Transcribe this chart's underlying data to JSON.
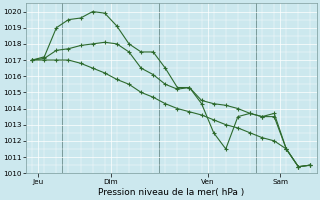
{
  "title": "Pression niveau de la mer( hPa )",
  "bg_color": "#cce8ee",
  "grid_color": "#ffffff",
  "line_color": "#2d6a2d",
  "vline_color": "#7a9a9a",
  "spine_color": "#7a9a9a",
  "ylim": [
    1010,
    1020.5
  ],
  "yticks": [
    1010,
    1011,
    1012,
    1013,
    1014,
    1015,
    1016,
    1017,
    1018,
    1019,
    1020
  ],
  "day_labels": [
    "Jeu",
    "Dim",
    "Ven",
    "Sam"
  ],
  "day_positions": [
    0.5,
    6.5,
    14.5,
    20.5
  ],
  "vline_positions": [
    2.5,
    10.5,
    18.5
  ],
  "series1_x": [
    0,
    1,
    2,
    3,
    4,
    5,
    6,
    7,
    8,
    9,
    10,
    11,
    12,
    13,
    14,
    15,
    16,
    17,
    18,
    19,
    20,
    21,
    22,
    23
  ],
  "series1": [
    1017.0,
    1017.2,
    1019.0,
    1019.5,
    1019.6,
    1020.0,
    1019.9,
    1019.1,
    1018.0,
    1017.5,
    1017.5,
    1016.5,
    1015.3,
    1015.3,
    1014.3,
    1012.5,
    1011.5,
    1013.5,
    1013.7,
    1013.5,
    1013.7,
    1011.5,
    1010.4,
    1010.5
  ],
  "series2_x": [
    0,
    1,
    2,
    3,
    4,
    5,
    6,
    7,
    8,
    9,
    10,
    11,
    12,
    13,
    14,
    15,
    16,
    17,
    18,
    19,
    20,
    21,
    22,
    23
  ],
  "series2": [
    1017.0,
    1017.1,
    1017.6,
    1017.7,
    1017.9,
    1018.0,
    1018.1,
    1018.0,
    1017.5,
    1016.5,
    1016.1,
    1015.5,
    1015.2,
    1015.3,
    1014.5,
    1014.3,
    1014.2,
    1014.0,
    1013.7,
    1013.5,
    1013.5,
    1011.5,
    1010.4,
    1010.5
  ],
  "series3_x": [
    0,
    1,
    2,
    3,
    4,
    5,
    6,
    7,
    8,
    9,
    10,
    11,
    12,
    13,
    14,
    15,
    16,
    17,
    18,
    19,
    20,
    21,
    22,
    23
  ],
  "series3": [
    1017.0,
    1017.0,
    1017.0,
    1017.0,
    1016.8,
    1016.5,
    1016.2,
    1015.8,
    1015.5,
    1015.0,
    1014.7,
    1014.3,
    1014.0,
    1013.8,
    1013.6,
    1013.3,
    1013.0,
    1012.8,
    1012.5,
    1012.2,
    1012.0,
    1011.5,
    1010.4,
    1010.5
  ],
  "ylabel_fontsize": 6.0,
  "tick_fontsize": 5.2,
  "xlabel_fontsize": 6.5
}
